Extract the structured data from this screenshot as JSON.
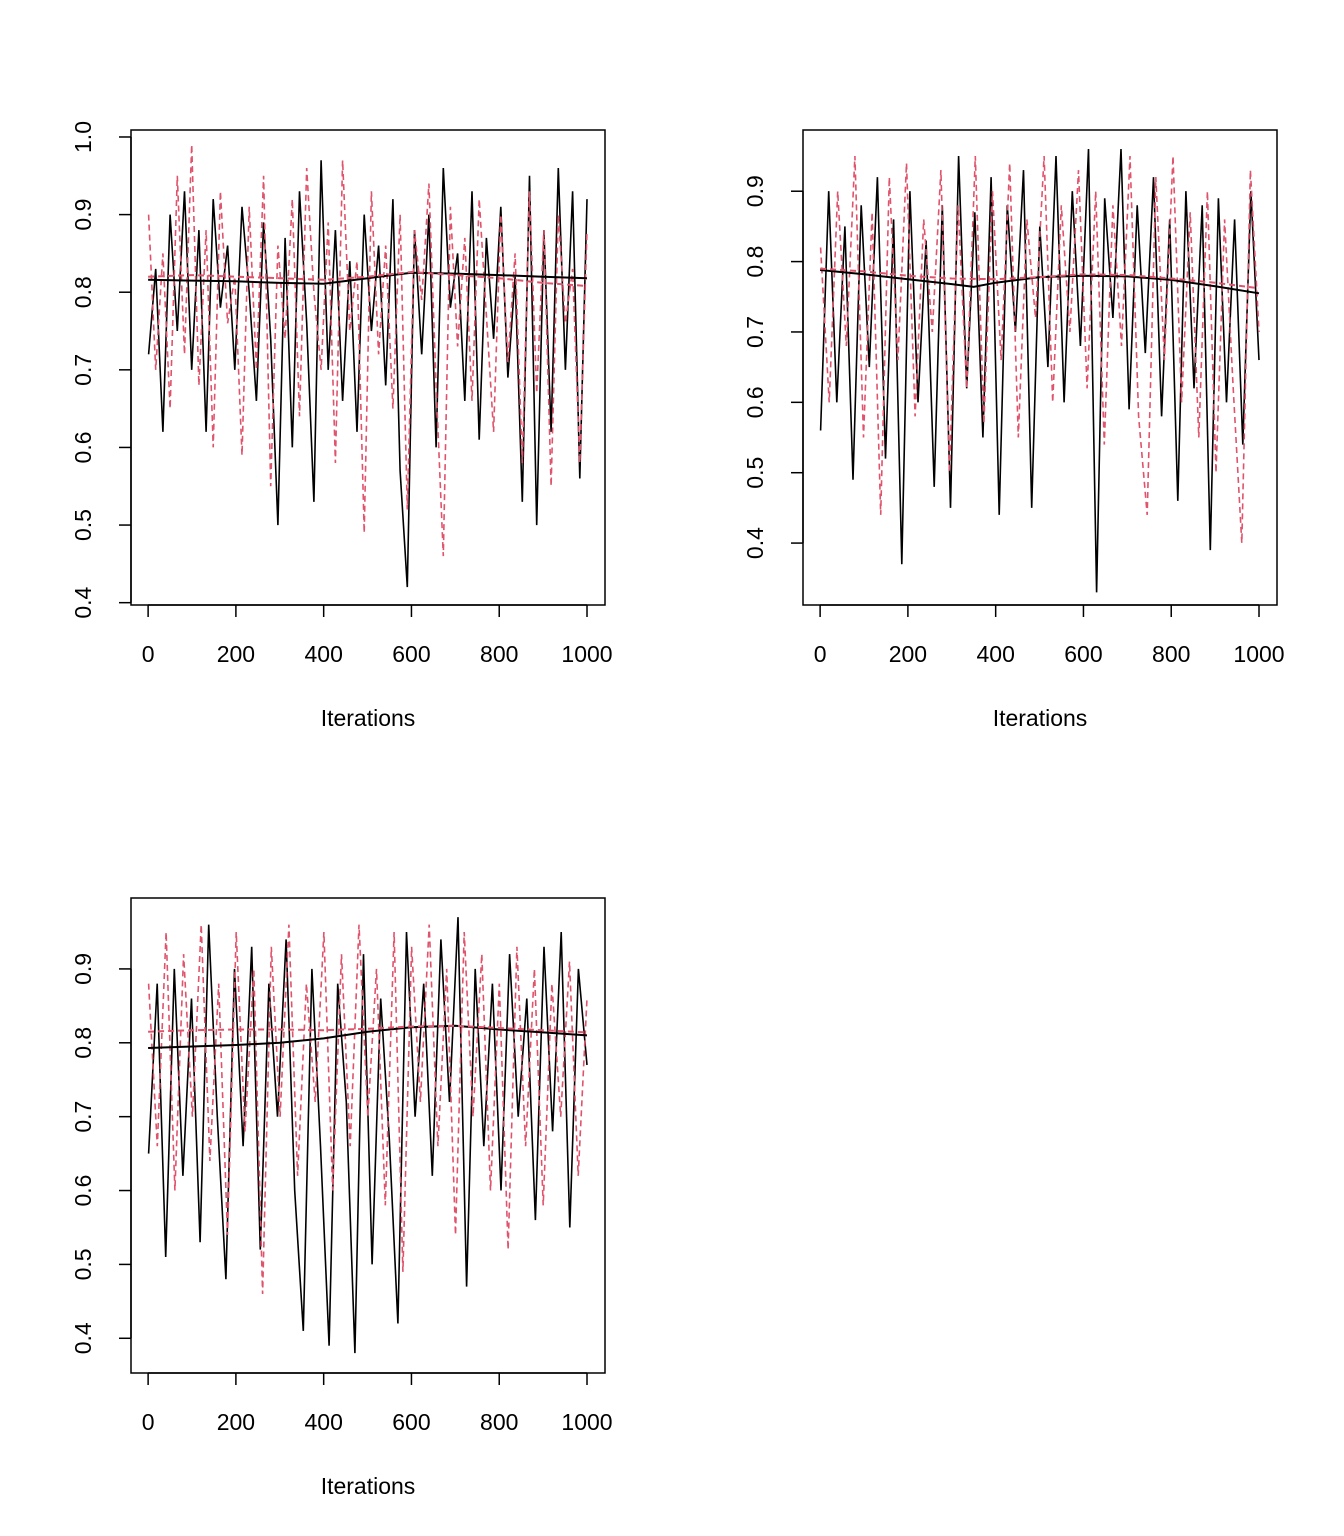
{
  "chart_data": [
    {
      "type": "line",
      "xlabel": "Iterations",
      "ylabel": "",
      "xlim": [
        -39,
        1041
      ],
      "ylim": [
        0.397,
        1.009
      ],
      "xticks": [
        "0",
        "200",
        "400",
        "600",
        "800",
        "1000"
      ],
      "yticks": [
        "0.4",
        "0.5",
        "0.6",
        "0.7",
        "0.8",
        "0.9",
        "1.0"
      ],
      "series": [
        {
          "color": "#000000",
          "style": "solid",
          "values": [
            0.72,
            0.83,
            0.62,
            0.9,
            0.75,
            0.93,
            0.7,
            0.88,
            0.62,
            0.92,
            0.78,
            0.86,
            0.7,
            0.91,
            0.8,
            0.66,
            0.89,
            0.74,
            0.5,
            0.87,
            0.6,
            0.93,
            0.76,
            0.53,
            0.97,
            0.7,
            0.88,
            0.66,
            0.84,
            0.62,
            0.9,
            0.75,
            0.86,
            0.68,
            0.92,
            0.57,
            0.42,
            0.88,
            0.72,
            0.9,
            0.6,
            0.96,
            0.78,
            0.85,
            0.66,
            0.93,
            0.61,
            0.87,
            0.74,
            0.91,
            0.69,
            0.82,
            0.53,
            0.95,
            0.5,
            0.88,
            0.62,
            0.96,
            0.7,
            0.93,
            0.56,
            0.92
          ]
        },
        {
          "color": "#DF536B",
          "style": "dashed",
          "values": [
            0.9,
            0.7,
            0.85,
            0.65,
            0.95,
            0.72,
            0.99,
            0.68,
            0.88,
            0.6,
            0.93,
            0.76,
            0.82,
            0.59,
            0.91,
            0.7,
            0.95,
            0.55,
            0.86,
            0.74,
            0.92,
            0.64,
            0.96,
            0.8,
            0.7,
            0.89,
            0.58,
            0.97,
            0.75,
            0.84,
            0.49,
            0.93,
            0.72,
            0.86,
            0.65,
            0.9,
            0.52,
            0.88,
            0.79,
            0.94,
            0.68,
            0.46,
            0.91,
            0.73,
            0.87,
            0.66,
            0.92,
            0.77,
            0.62,
            0.9,
            0.71,
            0.85,
            0.58,
            0.93,
            0.67,
            0.88,
            0.55,
            0.9,
            0.76,
            0.83,
            0.58,
            0.88
          ]
        },
        {
          "color": "#000000",
          "style": "solid",
          "smooth": true,
          "x": [
            0,
            100,
            200,
            300,
            400,
            500,
            600,
            700,
            800,
            900,
            1000
          ],
          "values": [
            0.816,
            0.815,
            0.814,
            0.812,
            0.811,
            0.818,
            0.825,
            0.824,
            0.822,
            0.82,
            0.818
          ]
        },
        {
          "color": "#DF536B",
          "style": "dashed",
          "smooth": true,
          "x": [
            0,
            100,
            200,
            300,
            400,
            500,
            600,
            700,
            800,
            900,
            1000
          ],
          "values": [
            0.82,
            0.822,
            0.82,
            0.818,
            0.816,
            0.82,
            0.826,
            0.822,
            0.818,
            0.812,
            0.808
          ]
        }
      ]
    },
    {
      "type": "line",
      "xlabel": "Iterations",
      "ylabel": "",
      "xlim": [
        -39,
        1041
      ],
      "ylim": [
        0.312,
        0.987
      ],
      "xticks": [
        "0",
        "200",
        "400",
        "600",
        "800",
        "1000"
      ],
      "yticks": [
        "0.4",
        "0.5",
        "0.6",
        "0.7",
        "0.8",
        "0.9"
      ],
      "series": [
        {
          "color": "#000000",
          "style": "solid",
          "values": [
            0.56,
            0.9,
            0.6,
            0.85,
            0.49,
            0.88,
            0.65,
            0.92,
            0.52,
            0.86,
            0.37,
            0.9,
            0.6,
            0.83,
            0.48,
            0.88,
            0.45,
            0.95,
            0.62,
            0.87,
            0.55,
            0.92,
            0.44,
            0.88,
            0.7,
            0.93,
            0.45,
            0.85,
            0.65,
            0.95,
            0.6,
            0.9,
            0.68,
            0.96,
            0.33,
            0.89,
            0.72,
            0.96,
            0.59,
            0.88,
            0.67,
            0.92,
            0.58,
            0.86,
            0.46,
            0.9,
            0.62,
            0.88,
            0.39,
            0.89,
            0.6,
            0.86,
            0.54,
            0.9,
            0.66
          ]
        },
        {
          "color": "#DF536B",
          "style": "dashed",
          "values": [
            0.82,
            0.6,
            0.9,
            0.68,
            0.95,
            0.55,
            0.87,
            0.44,
            0.92,
            0.66,
            0.94,
            0.58,
            0.86,
            0.7,
            0.93,
            0.5,
            0.88,
            0.62,
            0.95,
            0.57,
            0.9,
            0.66,
            0.94,
            0.55,
            0.86,
            0.72,
            0.95,
            0.6,
            0.88,
            0.7,
            0.93,
            0.62,
            0.9,
            0.54,
            0.88,
            0.68,
            0.95,
            0.58,
            0.44,
            0.92,
            0.66,
            0.95,
            0.6,
            0.87,
            0.55,
            0.9,
            0.5,
            0.86,
            0.62,
            0.4,
            0.93,
            0.7
          ]
        },
        {
          "color": "#000000",
          "style": "solid",
          "smooth": true,
          "x": [
            0,
            100,
            200,
            300,
            350,
            400,
            500,
            600,
            700,
            800,
            900,
            1000
          ],
          "values": [
            0.788,
            0.782,
            0.775,
            0.768,
            0.764,
            0.77,
            0.778,
            0.78,
            0.779,
            0.774,
            0.765,
            0.755
          ]
        },
        {
          "color": "#DF536B",
          "style": "dashed",
          "smooth": true,
          "x": [
            0,
            100,
            200,
            300,
            400,
            500,
            600,
            700,
            800,
            900,
            1000
          ],
          "values": [
            0.79,
            0.786,
            0.78,
            0.776,
            0.775,
            0.778,
            0.782,
            0.781,
            0.776,
            0.77,
            0.762
          ]
        }
      ]
    },
    {
      "type": "line",
      "xlabel": "Iterations",
      "ylabel": "",
      "xlim": [
        -39,
        1041
      ],
      "ylim": [
        0.353,
        0.996
      ],
      "xticks": [
        "0",
        "200",
        "400",
        "600",
        "800",
        "1000"
      ],
      "yticks": [
        "0.4",
        "0.5",
        "0.6",
        "0.7",
        "0.8",
        "0.9"
      ],
      "series": [
        {
          "color": "#000000",
          "style": "solid",
          "values": [
            0.65,
            0.88,
            0.51,
            0.9,
            0.62,
            0.86,
            0.53,
            0.96,
            0.7,
            0.48,
            0.9,
            0.66,
            0.93,
            0.52,
            0.88,
            0.7,
            0.94,
            0.6,
            0.41,
            0.9,
            0.66,
            0.39,
            0.88,
            0.72,
            0.38,
            0.92,
            0.5,
            0.86,
            0.67,
            0.42,
            0.95,
            0.7,
            0.88,
            0.62,
            0.94,
            0.72,
            0.97,
            0.47,
            0.9,
            0.66,
            0.88,
            0.6,
            0.92,
            0.7,
            0.86,
            0.56,
            0.93,
            0.68,
            0.95,
            0.55,
            0.9,
            0.77
          ]
        },
        {
          "color": "#DF536B",
          "style": "dashed",
          "values": [
            0.88,
            0.66,
            0.95,
            0.6,
            0.92,
            0.7,
            0.96,
            0.64,
            0.88,
            0.54,
            0.95,
            0.68,
            0.9,
            0.46,
            0.93,
            0.7,
            0.96,
            0.62,
            0.88,
            0.72,
            0.95,
            0.6,
            0.92,
            0.66,
            0.96,
            0.7,
            0.9,
            0.58,
            0.95,
            0.49,
            0.93,
            0.72,
            0.96,
            0.66,
            0.9,
            0.54,
            0.95,
            0.7,
            0.92,
            0.6,
            0.88,
            0.52,
            0.93,
            0.66,
            0.9,
            0.58,
            0.88,
            0.7,
            0.91,
            0.62,
            0.86
          ]
        },
        {
          "color": "#000000",
          "style": "solid",
          "smooth": true,
          "x": [
            0,
            100,
            200,
            300,
            400,
            500,
            600,
            700,
            800,
            900,
            1000
          ],
          "values": [
            0.793,
            0.795,
            0.797,
            0.8,
            0.806,
            0.815,
            0.821,
            0.823,
            0.818,
            0.814,
            0.81
          ]
        },
        {
          "color": "#DF536B",
          "style": "dashed",
          "smooth": true,
          "x": [
            0,
            100,
            200,
            300,
            400,
            500,
            600,
            700,
            800,
            900,
            1000
          ],
          "values": [
            0.815,
            0.817,
            0.818,
            0.818,
            0.817,
            0.819,
            0.822,
            0.823,
            0.82,
            0.817,
            0.814
          ]
        }
      ]
    }
  ]
}
